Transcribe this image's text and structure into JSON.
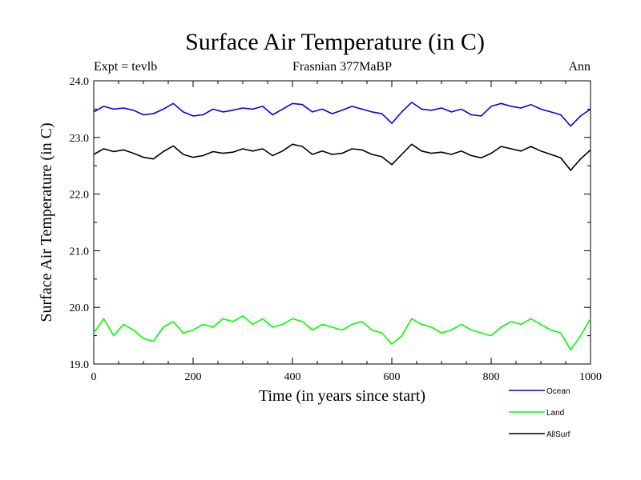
{
  "chart_data": {
    "type": "line",
    "title": "Surface Air Temperature (in C)",
    "subtitle_left": "Expt = tevlb",
    "subtitle_center": "Frasnian 377MaBP",
    "subtitle_right": "Ann",
    "xlabel": "Time (in years since start)",
    "ylabel": "Surface Air Temperature (in C)",
    "xlim": [
      0,
      1000
    ],
    "ylim": [
      19.0,
      24.0
    ],
    "xticks": [
      0,
      200,
      400,
      600,
      800,
      1000
    ],
    "xtick_labels": [
      "0",
      "200",
      "400",
      "600",
      "800",
      "1000"
    ],
    "yticks": [
      19.0,
      20.0,
      21.0,
      22.0,
      23.0,
      24.0
    ],
    "ytick_labels": [
      "19.0",
      "20.0",
      "21.0",
      "22.0",
      "23.0",
      "24.0"
    ],
    "grid": false,
    "legend_position": "bottom-right",
    "x": [
      0,
      20,
      40,
      60,
      80,
      100,
      120,
      140,
      160,
      180,
      200,
      220,
      240,
      260,
      280,
      300,
      320,
      340,
      360,
      380,
      400,
      420,
      440,
      460,
      480,
      500,
      520,
      540,
      560,
      580,
      600,
      620,
      640,
      660,
      680,
      700,
      720,
      740,
      760,
      780,
      800,
      820,
      840,
      860,
      880,
      900,
      920,
      940,
      960,
      980,
      1000
    ],
    "series": [
      {
        "name": "Ocean",
        "color": "#0000ff",
        "values": [
          23.45,
          23.55,
          23.5,
          23.52,
          23.48,
          23.4,
          23.42,
          23.5,
          23.6,
          23.45,
          23.38,
          23.4,
          23.5,
          23.45,
          23.48,
          23.52,
          23.5,
          23.55,
          23.4,
          23.5,
          23.6,
          23.58,
          23.45,
          23.5,
          23.42,
          23.48,
          23.55,
          23.5,
          23.45,
          23.42,
          23.25,
          23.45,
          23.62,
          23.5,
          23.48,
          23.52,
          23.45,
          23.5,
          23.4,
          23.38,
          23.55,
          23.6,
          23.55,
          23.52,
          23.58,
          23.5,
          23.45,
          23.4,
          23.2,
          23.38,
          23.5
        ]
      },
      {
        "name": "Land",
        "color": "#00ff00",
        "values": [
          19.55,
          19.8,
          19.5,
          19.7,
          19.6,
          19.45,
          19.4,
          19.65,
          19.75,
          19.55,
          19.6,
          19.7,
          19.65,
          19.8,
          19.75,
          19.85,
          19.7,
          19.8,
          19.65,
          19.7,
          19.8,
          19.75,
          19.6,
          19.7,
          19.65,
          19.6,
          19.7,
          19.75,
          19.6,
          19.55,
          19.35,
          19.5,
          19.8,
          19.7,
          19.65,
          19.55,
          19.6,
          19.7,
          19.6,
          19.55,
          19.5,
          19.65,
          19.75,
          19.7,
          19.8,
          19.7,
          19.6,
          19.55,
          19.25,
          19.5,
          19.8
        ]
      },
      {
        "name": "AllSurf",
        "color": "#000000",
        "values": [
          22.7,
          22.8,
          22.75,
          22.78,
          22.72,
          22.65,
          22.62,
          22.75,
          22.85,
          22.7,
          22.65,
          22.68,
          22.75,
          22.72,
          22.74,
          22.8,
          22.76,
          22.8,
          22.68,
          22.76,
          22.88,
          22.84,
          22.7,
          22.76,
          22.7,
          22.72,
          22.8,
          22.78,
          22.7,
          22.66,
          22.52,
          22.7,
          22.88,
          22.76,
          22.72,
          22.74,
          22.7,
          22.76,
          22.68,
          22.64,
          22.72,
          22.84,
          22.8,
          22.76,
          22.84,
          22.76,
          22.7,
          22.64,
          22.42,
          22.62,
          22.78
        ]
      }
    ]
  }
}
